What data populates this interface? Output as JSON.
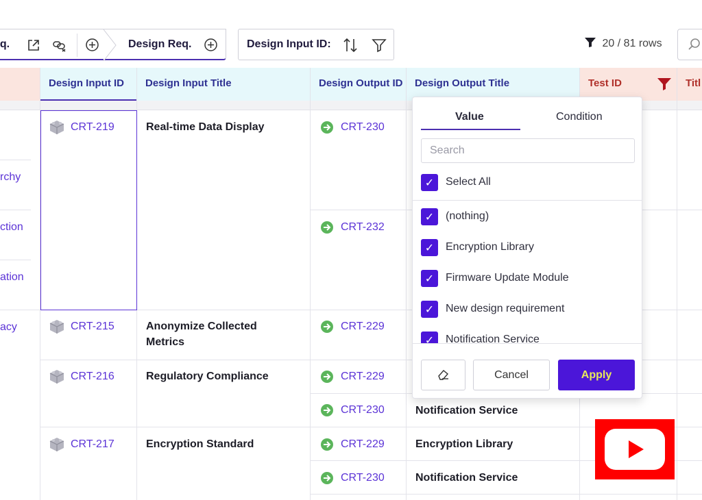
{
  "toolbar": {
    "tab1_label": "eq.",
    "tab2_label": "Design Req.",
    "sort_label": "Design Input ID:",
    "rows_count": "20 / 81 rows"
  },
  "columns": {
    "design_input_id": "Design Input ID",
    "design_input_title": "Design Input Title",
    "design_output_id": "Design Output ID",
    "design_output_title": "Design Output Title",
    "test_id": "Test ID",
    "title": "Titl"
  },
  "left_column_fragments": [
    "rchy",
    "ction",
    "ation",
    "acy"
  ],
  "rows": [
    {
      "input_id": "CRT-219",
      "input_title": "Real-time Data Display",
      "outputs": [
        {
          "id": "CRT-230",
          "title": ""
        },
        {
          "id": "CRT-232",
          "title": ""
        }
      ]
    },
    {
      "input_id": "CRT-215",
      "input_title": "Anonymize Collected Metrics",
      "outputs": [
        {
          "id": "CRT-229",
          "title": ""
        }
      ]
    },
    {
      "input_id": "CRT-216",
      "input_title": "Regulatory Compliance",
      "outputs": [
        {
          "id": "CRT-229",
          "title": ""
        },
        {
          "id": "CRT-230",
          "title": "Notification Service"
        }
      ]
    },
    {
      "input_id": "CRT-217",
      "input_title": "Encryption Standard",
      "outputs": [
        {
          "id": "CRT-229",
          "title": "Encryption Library"
        },
        {
          "id": "CRT-230",
          "title": "Notification Service"
        }
      ]
    }
  ],
  "filter_popup": {
    "tabs": [
      "Value",
      "Condition"
    ],
    "search_placeholder": "Search",
    "select_all": "Select All",
    "items": [
      "(nothing)",
      "Encryption Library",
      "Firmware Update Module",
      "New design requirement",
      "Notification Service"
    ],
    "cancel_label": "Cancel",
    "apply_label": "Apply"
  },
  "colors": {
    "accent": "#4b16d9",
    "link": "#5b33d6",
    "header_cyan": "#e6f8fb",
    "header_pink": "#fbe5df",
    "filter_active": "#b0151f",
    "apply_text": "#e8ea5a",
    "youtube_red": "#ff0000"
  },
  "icons": {
    "input_item": "cube-icon",
    "output_item": "arrow-circle-icon",
    "filter": "funnel-icon",
    "video": "youtube-play-icon"
  }
}
